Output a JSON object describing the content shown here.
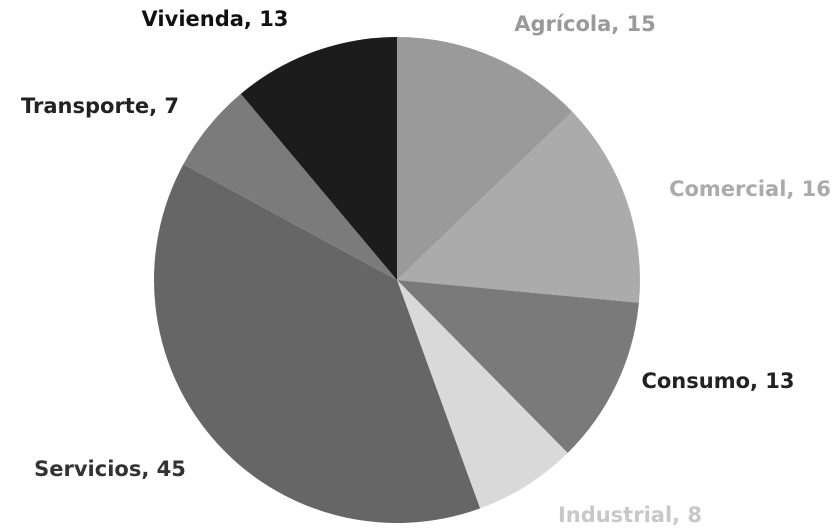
{
  "chart_data": {
    "type": "pie",
    "categories": [
      "Agrícola",
      "Comercial",
      "Consumo",
      "Industrial",
      "Servicios",
      "Transporte",
      "Vivienda"
    ],
    "values": [
      15,
      16,
      13,
      8,
      45,
      7,
      13
    ],
    "value_labels": [
      "Agrícola, 15",
      "Comercial, 16",
      "Consumo, 13",
      "Industrial, 8",
      "Servicios, 45",
      "Transporte, 7",
      "Vivienda, 13"
    ],
    "colors": [
      "#9a9a9a",
      "#ababab",
      "#7a7a7a",
      "#d9d9d9",
      "#666666",
      "#7b7b7b",
      "#1c1c1c"
    ],
    "label_colors": [
      "#9a9a9a",
      "#ababab",
      "#222222",
      "#c8c8c8",
      "#333333",
      "#222222",
      "#111111"
    ]
  }
}
